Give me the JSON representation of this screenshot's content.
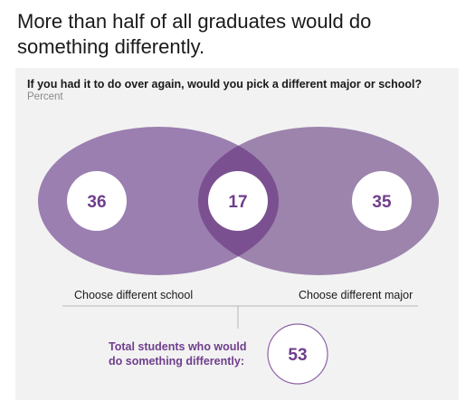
{
  "headline": "More than half of all graduates would do something differently.",
  "question": "If you had it to do over again, would you pick a different major or school?",
  "unit": "Percent",
  "venn": {
    "left_value": "36",
    "overlap_value": "17",
    "right_value": "35",
    "left_label": "Choose different school",
    "right_label": "Choose different major"
  },
  "total": {
    "label": "Total students who would do something differently:",
    "value": "53"
  },
  "colors": {
    "left_ellipse": "#9b7fb0",
    "right_ellipse": "#9c84ad",
    "overlap": "#7b5090",
    "text_accent": "#6f3e8c",
    "panel_bg": "#f2f2f2"
  }
}
